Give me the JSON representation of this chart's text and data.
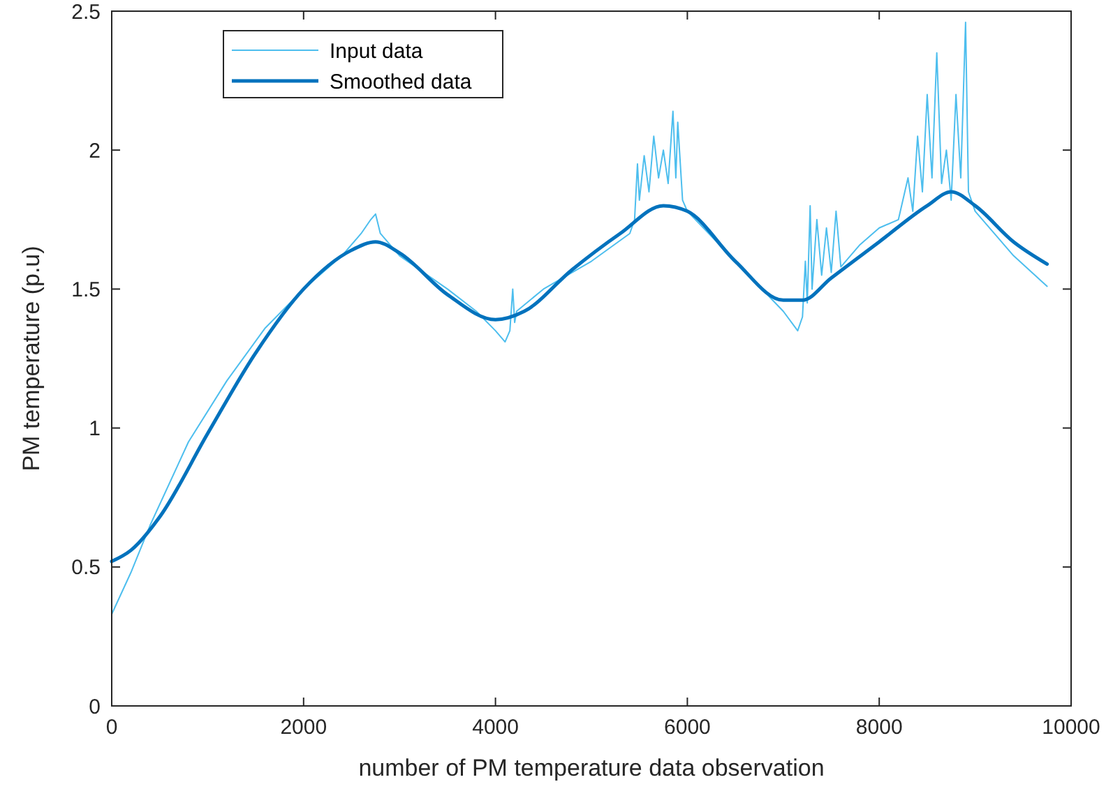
{
  "chart_data": {
    "type": "line",
    "xlabel": "number of PM temperature data observation",
    "ylabel": "PM temperature (p.u)",
    "xlim": [
      0,
      10000
    ],
    "ylim": [
      0,
      2.5
    ],
    "xticks": [
      0,
      2000,
      4000,
      6000,
      8000,
      10000
    ],
    "yticks": [
      0,
      0.5,
      1,
      1.5,
      2,
      2.5
    ],
    "grid": false,
    "legend": "top left",
    "marker": "none",
    "line_style": "solid",
    "series": [
      {
        "name": "Input data",
        "color": "#4dbeee",
        "x": [
          0,
          200,
          400,
          800,
          1200,
          1600,
          2000,
          2400,
          2500,
          2600,
          2700,
          2750,
          2800,
          3000,
          3500,
          3800,
          4000,
          4100,
          4150,
          4180,
          4200,
          4220,
          4500,
          5000,
          5400,
          5450,
          5480,
          5500,
          5550,
          5600,
          5650,
          5700,
          5750,
          5800,
          5850,
          5880,
          5900,
          5950,
          6000,
          6500,
          7000,
          7150,
          7200,
          7230,
          7250,
          7280,
          7300,
          7350,
          7400,
          7450,
          7500,
          7550,
          7600,
          7700,
          7800,
          8000,
          8200,
          8300,
          8350,
          8400,
          8450,
          8500,
          8550,
          8600,
          8650,
          8700,
          8750,
          8800,
          8850,
          8900,
          8930,
          9000,
          9400,
          9750
        ],
        "values": [
          0.33,
          0.48,
          0.65,
          0.95,
          1.17,
          1.36,
          1.5,
          1.62,
          1.66,
          1.7,
          1.75,
          1.77,
          1.7,
          1.62,
          1.5,
          1.42,
          1.35,
          1.31,
          1.35,
          1.5,
          1.38,
          1.42,
          1.5,
          1.6,
          1.7,
          1.75,
          1.95,
          1.82,
          1.98,
          1.85,
          2.05,
          1.9,
          2.0,
          1.88,
          2.14,
          1.9,
          2.1,
          1.82,
          1.78,
          1.6,
          1.42,
          1.35,
          1.4,
          1.6,
          1.45,
          1.8,
          1.5,
          1.75,
          1.55,
          1.72,
          1.56,
          1.78,
          1.58,
          1.62,
          1.66,
          1.72,
          1.75,
          1.9,
          1.78,
          2.05,
          1.85,
          2.2,
          1.9,
          2.35,
          1.88,
          2.0,
          1.82,
          2.2,
          1.9,
          2.46,
          1.85,
          1.78,
          1.62,
          1.51
        ]
      },
      {
        "name": "Smoothed data",
        "color": "#0072bd",
        "x": [
          0,
          200,
          500,
          1000,
          1500,
          2000,
          2500,
          2750,
          3000,
          3500,
          4000,
          4300,
          4800,
          5300,
          5750,
          6000,
          6500,
          7000,
          7200,
          7500,
          8000,
          8500,
          8750,
          9000,
          9400,
          9750
        ],
        "values": [
          0.52,
          0.56,
          0.68,
          0.98,
          1.27,
          1.5,
          1.64,
          1.67,
          1.63,
          1.48,
          1.39,
          1.42,
          1.57,
          1.7,
          1.8,
          1.78,
          1.6,
          1.46,
          1.46,
          1.54,
          1.67,
          1.8,
          1.85,
          1.8,
          1.67,
          1.59
        ]
      }
    ]
  }
}
